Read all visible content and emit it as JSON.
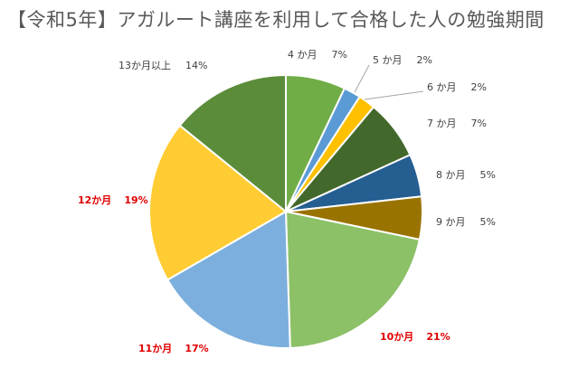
{
  "chart_data": {
    "type": "pie",
    "title": "【令和5年】アガルート講座を利用して合格した人の勉強期間",
    "start_angle_deg": 0,
    "direction": "clockwise",
    "slices": [
      {
        "label": "4か月",
        "display_label": "4 か月",
        "value": 7,
        "display": "7%",
        "color": "#70ad47",
        "highlight": false
      },
      {
        "label": "5か月",
        "display_label": "5 か月",
        "value": 2,
        "display": "2%",
        "color": "#5b9bd5",
        "highlight": false
      },
      {
        "label": "6か月",
        "display_label": "6 か月",
        "value": 2,
        "display": "2%",
        "color": "#ffc000",
        "highlight": false
      },
      {
        "label": "7か月",
        "display_label": "7 か月",
        "value": 7,
        "display": "7%",
        "color": "#43682b",
        "highlight": false
      },
      {
        "label": "8か月",
        "display_label": "8 か月",
        "value": 5,
        "display": "5%",
        "color": "#255e91",
        "highlight": false
      },
      {
        "label": "9か月",
        "display_label": "9 か月",
        "value": 5,
        "display": "5%",
        "color": "#997300",
        "highlight": false
      },
      {
        "label": "10か月",
        "display_label": "10か月",
        "value": 21,
        "display": "21%",
        "color": "#8cc168",
        "highlight": true
      },
      {
        "label": "11か月",
        "display_label": "11か月",
        "value": 17,
        "display": "17%",
        "color": "#7cafdd",
        "highlight": true
      },
      {
        "label": "12か月",
        "display_label": "12か月",
        "value": 19,
        "display": "19%",
        "color": "#ffcd33",
        "highlight": true
      },
      {
        "label": "13か月以上",
        "display_label": "13か月以上",
        "value": 14,
        "display": "14%",
        "color": "#5b8c3a",
        "highlight": false
      }
    ]
  }
}
